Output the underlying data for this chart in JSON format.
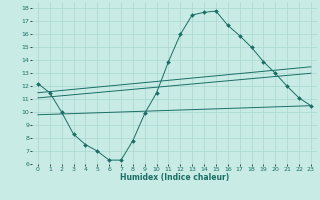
{
  "xlabel": "Humidex (Indice chaleur)",
  "bg_color": "#c8ebe6",
  "grid_color": "#a8d8d0",
  "line_color": "#1a6e64",
  "xlim": [
    -0.5,
    23.5
  ],
  "ylim": [
    6,
    18.5
  ],
  "xticks": [
    0,
    1,
    2,
    3,
    4,
    5,
    6,
    7,
    8,
    9,
    10,
    11,
    12,
    13,
    14,
    15,
    16,
    17,
    18,
    19,
    20,
    21,
    22,
    23
  ],
  "yticks": [
    6,
    7,
    8,
    9,
    10,
    11,
    12,
    13,
    14,
    15,
    16,
    17,
    18
  ],
  "series": [
    {
      "x": [
        0,
        1,
        2,
        3,
        4,
        5,
        6,
        7,
        8,
        9,
        10,
        11,
        12,
        13,
        14,
        15,
        16,
        17,
        18,
        19,
        20,
        21,
        22,
        23
      ],
      "y": [
        12.2,
        11.5,
        10.0,
        8.3,
        7.5,
        7.0,
        6.3,
        6.3,
        7.8,
        9.9,
        11.5,
        13.9,
        16.0,
        17.5,
        17.7,
        17.8,
        16.7,
        15.9,
        15.0,
        13.9,
        13.0,
        12.0,
        11.1,
        10.5
      ],
      "marker": "D",
      "markersize": 2.0
    },
    {
      "x": [
        0,
        23
      ],
      "y": [
        11.5,
        13.5
      ],
      "marker": null
    },
    {
      "x": [
        0,
        23
      ],
      "y": [
        11.1,
        13.0
      ],
      "marker": null
    },
    {
      "x": [
        0,
        23
      ],
      "y": [
        9.8,
        10.5
      ],
      "marker": null
    }
  ]
}
